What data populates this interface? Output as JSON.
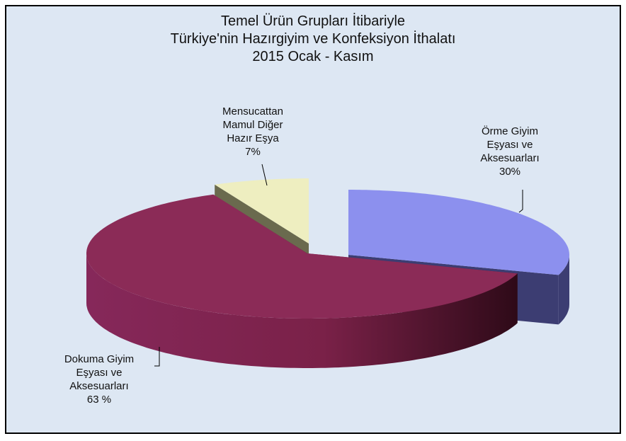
{
  "chart_data": {
    "type": "pie3d",
    "title": "Temel Ürün Grupları İtibariyle\nTürkiye'nin Hazırgiyim ve Konfeksiyon İthalatı\n2015 Ocak - Kasım",
    "categories": [
      "Örme Giyim\nEşyası ve\nAksesuarları",
      "Dokuma Giyim\nEşyası ve\nAksesuarları",
      "Mensucattan\nMamul Diğer\nHazır Eşya"
    ],
    "values": [
      30,
      63,
      7
    ],
    "value_labels": [
      "30%",
      "63 %",
      "7%"
    ],
    "colors": [
      "#8c90ee",
      "#8b2b57",
      "#eeeec0"
    ]
  }
}
